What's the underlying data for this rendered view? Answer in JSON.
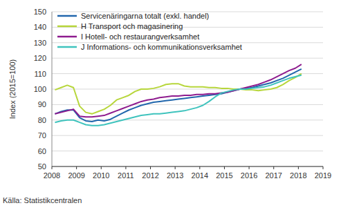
{
  "chart_data": {
    "type": "line",
    "x": [
      2008.125,
      2008.375,
      2008.625,
      2008.875,
      2009.125,
      2009.375,
      2009.625,
      2009.875,
      2010.125,
      2010.375,
      2010.625,
      2010.875,
      2011.125,
      2011.375,
      2011.625,
      2011.875,
      2012.125,
      2012.375,
      2012.625,
      2012.875,
      2013.125,
      2013.375,
      2013.625,
      2013.875,
      2014.125,
      2014.375,
      2014.625,
      2014.875,
      2015.125,
      2015.375,
      2015.625,
      2015.875,
      2016.125,
      2016.375,
      2016.625,
      2016.875,
      2017.125,
      2017.375,
      2017.625,
      2017.875,
      2018.125
    ],
    "xlim": [
      2008,
      2019
    ],
    "xticks": [
      2008,
      2009,
      2010,
      2011,
      2012,
      2013,
      2014,
      2015,
      2016,
      2017,
      2018,
      2019
    ],
    "ylim": [
      50,
      150
    ],
    "yticks": [
      50,
      60,
      70,
      80,
      90,
      100,
      110,
      120,
      130,
      140,
      150
    ],
    "y_label": "Index (2015=100)",
    "source": "Källa: Statistikcentralen",
    "grid": true,
    "legend": "upper left",
    "series": [
      {
        "name": "Servicenäringarna totalt (exkl. handel)",
        "color": "#2166ac",
        "values": [
          84,
          85.5,
          86.5,
          86.5,
          81.5,
          79.5,
          79,
          80,
          79.5,
          80.5,
          82.5,
          84.5,
          86.5,
          88,
          89.5,
          90.5,
          91.5,
          92,
          92.5,
          93,
          93.5,
          94,
          94.5,
          95,
          95.5,
          96,
          96.5,
          97,
          98,
          99,
          100,
          100.5,
          101,
          102,
          103,
          104,
          105.5,
          107,
          109,
          111,
          113
        ]
      },
      {
        "name": "H Transport och magasinering",
        "color": "#b7d63b",
        "values": [
          99.5,
          101,
          102.5,
          101,
          89,
          85,
          84,
          85.5,
          87,
          89.5,
          93,
          94.5,
          96,
          98.5,
          100,
          100,
          100.5,
          101.5,
          103,
          103.5,
          103.5,
          102,
          101.5,
          101.5,
          101.5,
          101,
          101,
          100.5,
          100.5,
          100,
          100,
          99.5,
          99.5,
          99,
          99.5,
          100,
          101,
          103,
          105.5,
          107.5,
          110
        ]
      },
      {
        "name": "I Hotell- och restaurangverksamhet",
        "color": "#8e1b8e",
        "values": [
          84,
          85,
          86,
          87,
          82.5,
          82,
          82,
          82.5,
          83,
          84.5,
          86,
          87.5,
          89,
          90.5,
          92,
          93,
          93.5,
          94.5,
          95,
          95.5,
          95.5,
          96,
          96,
          96.5,
          96.5,
          97,
          97,
          97.5,
          98,
          99,
          100,
          101,
          102,
          103,
          104.5,
          106,
          108,
          110,
          112,
          113.5,
          116
        ]
      },
      {
        "name": "J Informations- och kommunikationsverksamhet",
        "color": "#3ec3bd",
        "values": [
          78.5,
          79.5,
          80,
          80,
          78.5,
          77,
          76.5,
          76.5,
          77,
          78,
          79,
          80,
          81,
          82,
          83,
          83.5,
          84,
          84,
          84.5,
          85,
          85.5,
          86,
          87,
          88,
          89.5,
          92,
          95,
          97.5,
          98.5,
          99.5,
          100,
          100,
          100.5,
          101,
          101.5,
          102.5,
          104,
          105.5,
          107,
          108,
          109
        ]
      }
    ]
  }
}
